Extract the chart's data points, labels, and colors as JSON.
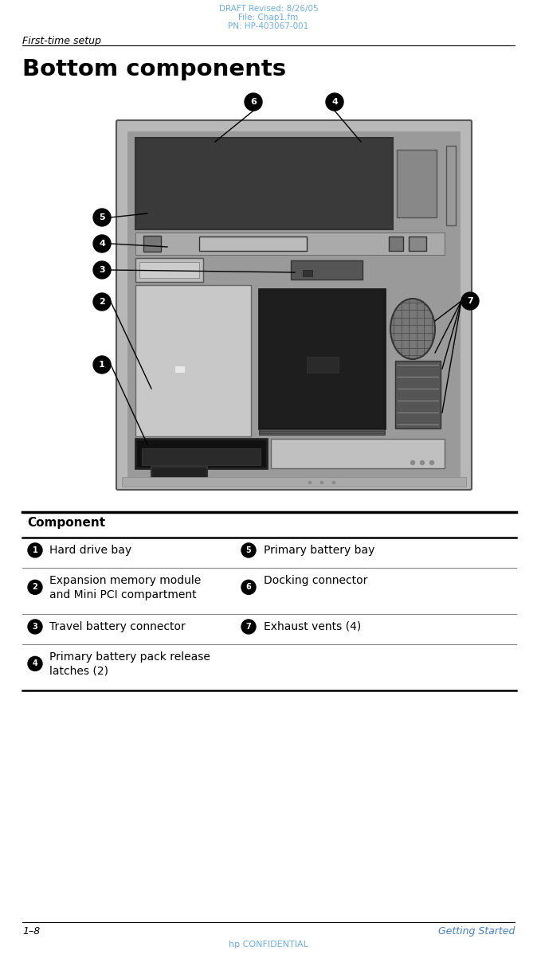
{
  "header_line1": "DRAFT Revised: 8/26/05",
  "header_line2": "File: Chap1.fm",
  "header_line3": "PN: HP-403067-001",
  "header_color": "#6aaee8",
  "left_header": "First-time setup",
  "title": "Bottom components",
  "page_left": "1–8",
  "page_right": "Getting Started",
  "footer_center": "hp CONFIDENTIAL",
  "blue_color": "#4080c8",
  "table_header": "Component",
  "table_rows": [
    {
      "left_text": "Hard drive bay",
      "right_text": "Primary battery bay"
    },
    {
      "left_text": "Expansion memory module\nand Mini PCI compartment",
      "right_text": "Docking connector"
    },
    {
      "left_text": "Travel battery connector",
      "right_text": "Exhaust vents (4)"
    },
    {
      "left_text": "Primary battery pack release\nlatches (2)",
      "right_text": ""
    }
  ],
  "bg_color": "#ffffff",
  "text_color": "#000000"
}
